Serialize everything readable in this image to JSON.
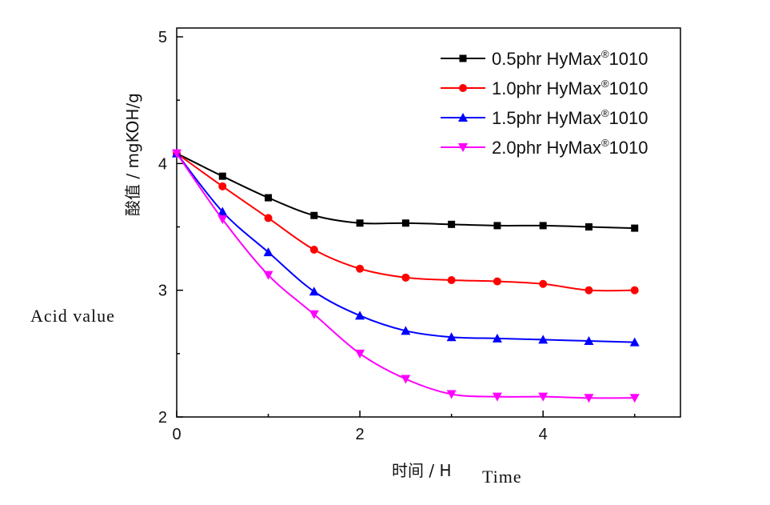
{
  "chart_data": {
    "type": "line",
    "title": "",
    "xlabel": "时间 / H",
    "ylabel": "酸值 / mgKOH/g",
    "annotations": {
      "x_english": "Time",
      "y_english": "Acid value"
    },
    "xlim": [
      0,
      5.5
    ],
    "ylim": [
      2,
      5
    ],
    "xticks": [
      "0",
      "2",
      "4"
    ],
    "yticks": [
      "2",
      "3",
      "4",
      "5"
    ],
    "grid": false,
    "legend_position": "top-right",
    "x": [
      0,
      0.5,
      1,
      1.5,
      2,
      2.5,
      3,
      3.5,
      4,
      4.5,
      5
    ],
    "series": [
      {
        "name": "0.5phr HyMax®1010",
        "color": "#000000",
        "marker": "square",
        "values": [
          4.08,
          3.9,
          3.73,
          3.59,
          3.53,
          3.53,
          3.52,
          3.51,
          3.51,
          3.5,
          3.49
        ]
      },
      {
        "name": "1.0phr HyMax®1010",
        "color": "#ff0000",
        "marker": "circle",
        "values": [
          4.08,
          3.82,
          3.57,
          3.32,
          3.17,
          3.1,
          3.08,
          3.07,
          3.05,
          3.0,
          3.0
        ]
      },
      {
        "name": "1.5phr HyMax®1010",
        "color": "#0000ff",
        "marker": "triangle-up",
        "values": [
          4.08,
          3.62,
          3.3,
          2.99,
          2.8,
          2.68,
          2.63,
          2.62,
          2.61,
          2.6,
          2.59
        ]
      },
      {
        "name": "2.0phr HyMax®1010",
        "color": "#ff00ff",
        "marker": "triangle-down",
        "values": [
          4.08,
          3.56,
          3.12,
          2.81,
          2.5,
          2.3,
          2.18,
          2.16,
          2.16,
          2.15,
          2.15
        ]
      }
    ]
  }
}
